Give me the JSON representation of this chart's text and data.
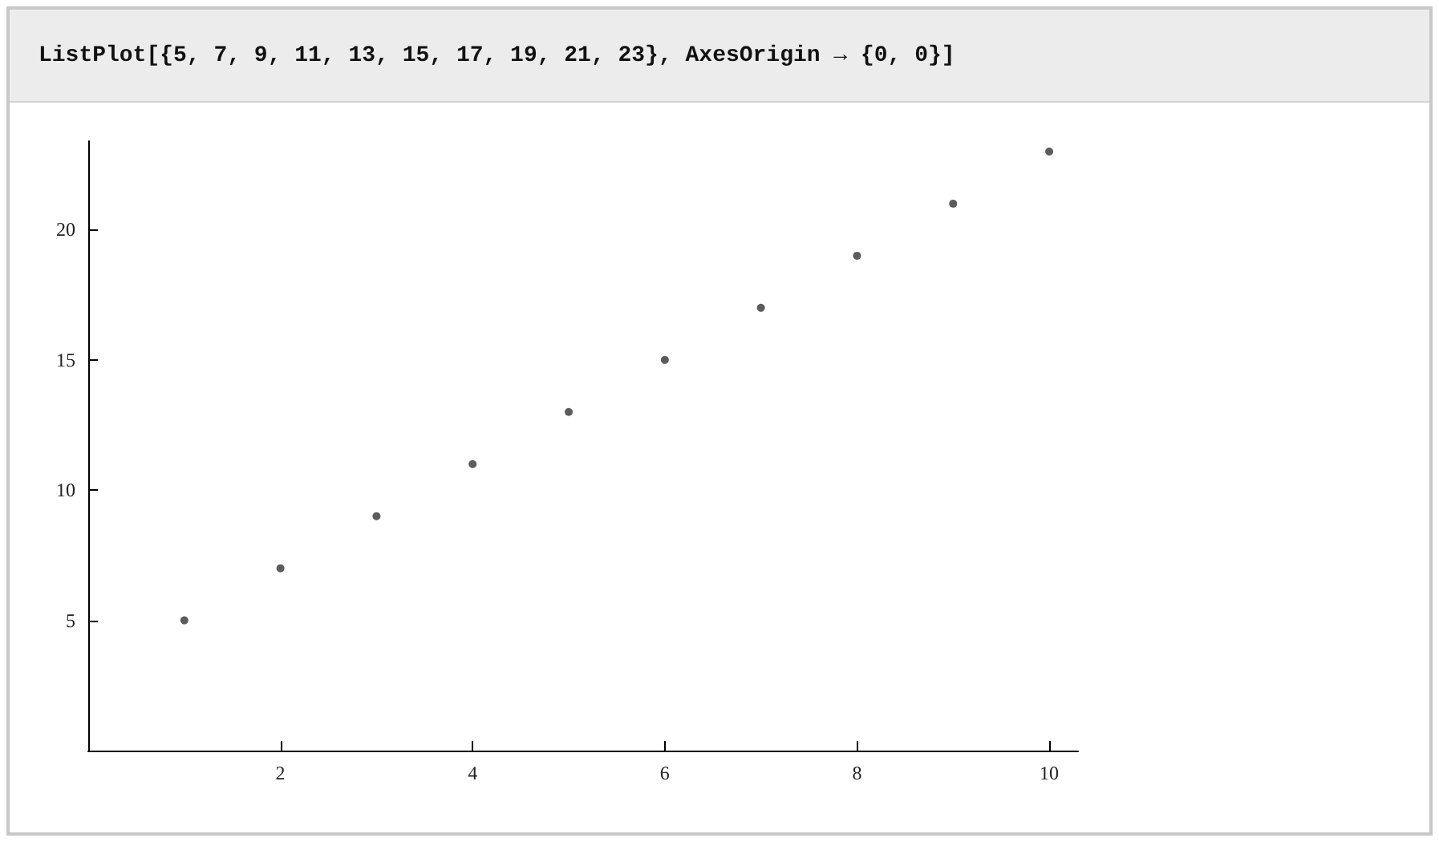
{
  "chart_data": {
    "type": "scatter",
    "title": "ListPlot[{5, 7, 9, 11, 13, 15, 17, 19, 21, 23}, AxesOrigin → {0, 0}]",
    "x": [
      1,
      2,
      3,
      4,
      5,
      6,
      7,
      8,
      9,
      10
    ],
    "series": [
      {
        "color": "#333333",
        "values": [
          5,
          7,
          9,
          11,
          13,
          15,
          17,
          19,
          21,
          23
        ]
      }
    ],
    "xlim": [
      0,
      10.3
    ],
    "ylim": [
      0,
      23.4
    ],
    "xticks": [
      2,
      4,
      6,
      8,
      10
    ],
    "yticks": [
      5,
      10,
      15,
      20
    ],
    "marker": "circle",
    "grid": false
  }
}
